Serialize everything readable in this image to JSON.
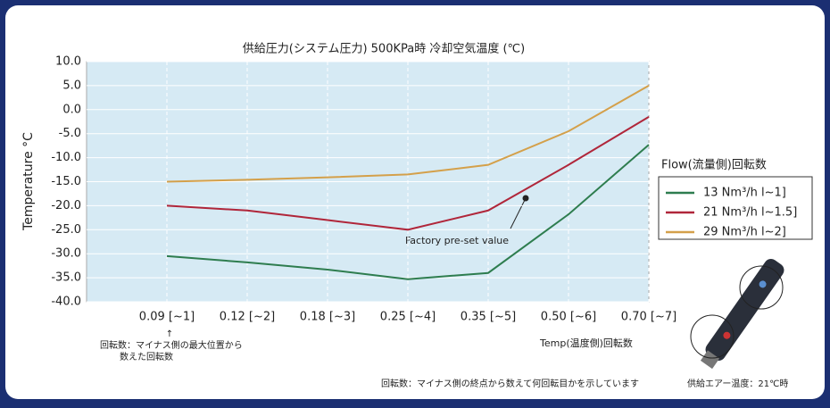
{
  "chart_data": {
    "type": "line",
    "title": "供給圧力(システム圧力) 500KPa時 冷却空気温度 (℃)",
    "y_label": "Temperature °C",
    "categories": [
      "0.09 [~1]",
      "0.12 [~2]",
      "0.18 [~3]",
      "0.25 [~4]",
      "0.35 [~5]",
      "0.50 [~6]",
      "0.70 [~7]"
    ],
    "series": [
      {
        "name": "13 Nm³/h l~1]",
        "color": "#2e7d4f",
        "values": [
          -30.5,
          -31.8,
          -33.3,
          -35.3,
          -34,
          -21.8,
          -7.3
        ]
      },
      {
        "name": "21 Nm³/h l~1.5]",
        "color": "#b0263a",
        "values": [
          -20,
          -21,
          -23,
          -25,
          -21,
          -11.5,
          -1.5
        ]
      },
      {
        "name": "29 Nm³/h l~2]",
        "color": "#d4a04a",
        "values": [
          -15,
          -14.6,
          -14.1,
          -13.5,
          -11.5,
          -4.5,
          5
        ]
      }
    ],
    "ylim": [
      -40,
      10
    ],
    "yticks": [
      {
        "value": -40,
        "label": "-40.0"
      },
      {
        "value": -35,
        "label": "-35.0"
      },
      {
        "value": -30,
        "label": "-30.0"
      },
      {
        "value": -25,
        "label": "-25.0"
      },
      {
        "value": -20,
        "label": "-20.0"
      },
      {
        "value": -15,
        "label": "-15.0"
      },
      {
        "value": -10,
        "label": "-10.0"
      },
      {
        "value": -5,
        "label": "-5.0"
      },
      {
        "value": 0,
        "label": "0.0"
      },
      {
        "value": 5,
        "label": "5.0"
      },
      {
        "value": 10,
        "label": "10.0"
      }
    ],
    "grid": true,
    "legend_title": "Flow(流量側)回転数",
    "annotation": "Factory pre-set value"
  },
  "notes": {
    "arrow": "↑",
    "first_line": "回転数：マイナス側の最大位置から",
    "second_line": "数えた回転数",
    "temp": "Temp(温度側)回転数",
    "footer": "回転数：マイナス側の終点から数えて何回転目かを示しています",
    "air": "供給エアー温度：21℃時"
  }
}
